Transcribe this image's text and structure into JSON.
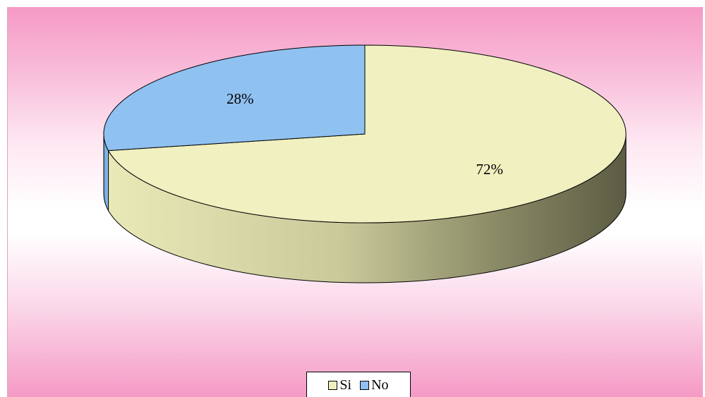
{
  "chart_data": {
    "type": "pie",
    "style": "3d",
    "slices": [
      {
        "label": "Si",
        "value": 72,
        "display": "72%",
        "color": "#f0f0c0"
      },
      {
        "label": "No",
        "value": 28,
        "display": "28%",
        "color": "#8fc1f1"
      }
    ],
    "legend": {
      "position": "bottom",
      "entries": [
        "Si",
        "No"
      ]
    },
    "background": [
      "#f59ac5",
      "#ffffff"
    ]
  }
}
